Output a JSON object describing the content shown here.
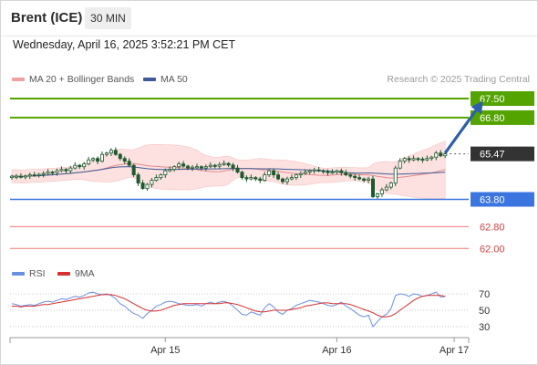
{
  "header": {
    "instrument": "Brent (ICE)",
    "timeframe": "30 MIN",
    "datetime": "Wednesday, April 16, 2025 3:52:21 PM CET"
  },
  "legend": {
    "ma20_label": "MA 20 + Bollinger Bands",
    "ma50_label": "MA 50",
    "copyright": "Research © 2025 Trading Central",
    "rsi_label": "RSI",
    "rsi_ma_label": "9MA"
  },
  "colors": {
    "green": "#54a400",
    "blue": "#3b76e0",
    "red": "#f07a7a",
    "candle": "#1e5a2e",
    "bb_fill": "#fde0e0",
    "ma20": "#e58a8a",
    "ma50": "#3d5b9a",
    "rsi": "#6a8fe0",
    "rsi_ma": "#d83030"
  },
  "chart_data": [
    {
      "type": "candlestick",
      "title": "",
      "ylim": [
        61.5,
        68.4
      ],
      "x_ticks": [
        {
          "label": "Apr 15",
          "index": 34
        },
        {
          "label": "Apr 16",
          "index": 72
        },
        {
          "label": "Apr 17",
          "index": 98
        }
      ],
      "levels": [
        {
          "value": 67.5,
          "label": "67.50",
          "kind": "resistance"
        },
        {
          "value": 66.8,
          "label": "66.80",
          "kind": "resistance"
        },
        {
          "value": 65.47,
          "label": "65.47",
          "kind": "last"
        },
        {
          "value": 63.8,
          "label": "63.80",
          "kind": "pivot"
        },
        {
          "value": 62.8,
          "label": "62.80",
          "kind": "support"
        },
        {
          "value": 62.0,
          "label": "62.00",
          "kind": "support"
        }
      ],
      "forecast_arrow": {
        "from_index": 96,
        "from": 65.5,
        "to_index": 104,
        "to": 67.35
      },
      "close": [
        64.65,
        64.65,
        64.62,
        64.66,
        64.7,
        64.68,
        64.72,
        64.75,
        64.8,
        64.78,
        64.85,
        64.9,
        64.85,
        64.95,
        65.05,
        65.0,
        65.1,
        65.25,
        65.3,
        65.2,
        65.45,
        65.5,
        65.6,
        65.45,
        65.3,
        65.2,
        65.05,
        64.7,
        64.4,
        64.2,
        64.35,
        64.5,
        64.6,
        64.7,
        64.85,
        64.9,
        65.0,
        65.1,
        65.02,
        64.95,
        64.98,
        65.0,
        64.95,
        65.0,
        65.05,
        65.02,
        65.08,
        65.12,
        65.06,
        64.95,
        64.8,
        64.6,
        64.55,
        64.6,
        64.55,
        64.5,
        64.7,
        64.85,
        64.7,
        64.55,
        64.45,
        64.55,
        64.6,
        64.7,
        64.75,
        64.8,
        64.85,
        64.88,
        64.85,
        64.82,
        64.78,
        64.8,
        64.85,
        64.78,
        64.7,
        64.65,
        64.6,
        64.55,
        64.5,
        64.55,
        63.9,
        64.0,
        64.15,
        64.25,
        64.4,
        64.95,
        65.2,
        65.3,
        65.25,
        65.3,
        65.28,
        65.25,
        65.3,
        65.35,
        65.5,
        65.4,
        65.47
      ],
      "open": [
        64.6,
        64.65,
        64.65,
        64.62,
        64.66,
        64.7,
        64.68,
        64.72,
        64.75,
        64.8,
        64.78,
        64.85,
        64.9,
        64.85,
        64.95,
        65.05,
        65.0,
        65.1,
        65.25,
        65.3,
        65.2,
        65.45,
        65.5,
        65.6,
        65.45,
        65.3,
        65.2,
        65.05,
        64.7,
        64.4,
        64.2,
        64.35,
        64.5,
        64.6,
        64.7,
        64.85,
        64.9,
        65.0,
        65.1,
        65.02,
        64.95,
        64.98,
        65.0,
        64.95,
        65.0,
        65.05,
        65.02,
        65.08,
        65.12,
        65.06,
        64.95,
        64.8,
        64.6,
        64.55,
        64.6,
        64.55,
        64.5,
        64.7,
        64.85,
        64.7,
        64.55,
        64.45,
        64.55,
        64.6,
        64.7,
        64.75,
        64.8,
        64.85,
        64.88,
        64.85,
        64.82,
        64.78,
        64.8,
        64.85,
        64.78,
        64.7,
        64.65,
        64.6,
        64.55,
        64.5,
        64.55,
        63.9,
        64.0,
        64.15,
        64.25,
        64.4,
        64.95,
        65.2,
        65.3,
        65.25,
        65.3,
        65.28,
        65.25,
        65.3,
        65.35,
        65.5,
        65.4
      ]
    },
    {
      "type": "line",
      "title": "",
      "ylim": [
        20,
        80
      ],
      "y_ticks": [
        70,
        50,
        30
      ],
      "series": [
        {
          "name": "RSI",
          "values": [
            58,
            57,
            55,
            56,
            57,
            56,
            58,
            60,
            61,
            60,
            62,
            64,
            63,
            65,
            67,
            66,
            68,
            71,
            72,
            70,
            69,
            70,
            68,
            64,
            58,
            55,
            50,
            46,
            44,
            40,
            46,
            50,
            55,
            57,
            60,
            61,
            60,
            58,
            57,
            56,
            56,
            57,
            55,
            58,
            60,
            58,
            60,
            61,
            59,
            55,
            50,
            45,
            44,
            48,
            46,
            44,
            53,
            58,
            54,
            48,
            45,
            50,
            52,
            56,
            58,
            60,
            62,
            61,
            60,
            58,
            56,
            55,
            57,
            60,
            55,
            52,
            48,
            44,
            42,
            44,
            30,
            36,
            42,
            45,
            52,
            68,
            70,
            69,
            67,
            70,
            69,
            67,
            68,
            70,
            72,
            66,
            67
          ]
        },
        {
          "name": "9MA",
          "values": [
            55,
            55,
            54,
            55,
            55,
            55,
            56,
            57,
            57,
            58,
            59,
            60,
            61,
            62,
            63,
            64,
            65,
            66,
            67,
            68,
            69,
            69,
            69,
            68,
            66,
            64,
            61,
            58,
            55,
            52,
            50,
            49,
            49,
            50,
            52,
            54,
            56,
            57,
            58,
            58,
            58,
            58,
            58,
            58,
            58,
            58,
            58,
            59,
            59,
            58,
            57,
            55,
            53,
            51,
            49,
            48,
            48,
            49,
            50,
            50,
            50,
            50,
            51,
            52,
            53,
            55,
            56,
            57,
            58,
            59,
            59,
            58,
            58,
            58,
            58,
            57,
            55,
            53,
            51,
            49,
            47,
            44,
            42,
            42,
            43,
            46,
            50,
            54,
            58,
            62,
            65,
            67,
            68,
            68,
            68,
            68,
            67
          ]
        }
      ]
    }
  ]
}
